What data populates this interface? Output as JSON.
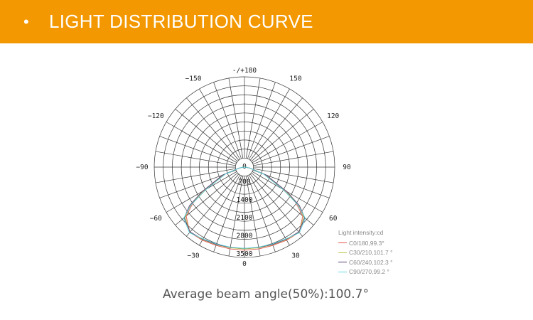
{
  "header": {
    "bullet": "•",
    "title": "LIGHT DISTRIBUTION CURVE"
  },
  "footer": {
    "beam_text": "Average beam angle(50%):100.7°"
  },
  "colors": {
    "banner": "#f39800",
    "grid": "#333333"
  },
  "chart_data": {
    "type": "polar",
    "radial_unit": "cd",
    "radial_max": 3500,
    "radial_ticks": [
      0,
      700,
      1400,
      2100,
      2800,
      3500
    ],
    "radial_tick_labels": [
      "0",
      "700",
      "1400",
      "2100",
      "2800",
      "3500"
    ],
    "angle_labels": [
      {
        "angle": 180,
        "label": "-/+180"
      },
      {
        "angle": 150,
        "label": "150"
      },
      {
        "angle": 120,
        "label": "120"
      },
      {
        "angle": 90,
        "label": "90"
      },
      {
        "angle": 60,
        "label": "60"
      },
      {
        "angle": 30,
        "label": "30"
      },
      {
        "angle": 0,
        "label": "0"
      },
      {
        "angle": -30,
        "label": "-30"
      },
      {
        "angle": -60,
        "label": "-60"
      },
      {
        "angle": -90,
        "label": "-90"
      },
      {
        "angle": -120,
        "label": "-120"
      },
      {
        "angle": -150,
        "label": "-150"
      }
    ],
    "legend_title": "Light intensity:cd",
    "series": [
      {
        "name": "C0/180,99.3°",
        "color": "#e05a4f",
        "angles": [
          0,
          10,
          20,
          30,
          40,
          50,
          55,
          60,
          70,
          80,
          90
        ],
        "values": [
          3220,
          3220,
          3230,
          3270,
          3300,
          2950,
          2450,
          1750,
          820,
          190,
          30
        ]
      },
      {
        "name": "C30/210,101.7 °",
        "color": "#b8c44a",
        "angles": [
          0,
          10,
          20,
          30,
          40,
          50,
          55,
          60,
          70,
          80,
          90
        ],
        "values": [
          3170,
          3180,
          3200,
          3240,
          3290,
          3000,
          2550,
          1850,
          880,
          200,
          30
        ]
      },
      {
        "name": "C60/240,102.3 °",
        "color": "#5a3f78",
        "angles": [
          0,
          10,
          20,
          30,
          40,
          50,
          55,
          60,
          70,
          80,
          90
        ],
        "values": [
          3150,
          3160,
          3190,
          3230,
          3280,
          3050,
          2600,
          1900,
          900,
          210,
          30
        ]
      },
      {
        "name": "C90/270,99.2 °",
        "color": "#5cd6e0",
        "angles": [
          0,
          10,
          20,
          30,
          40,
          50,
          55,
          60,
          70,
          80,
          90
        ],
        "values": [
          3150,
          3150,
          3170,
          3210,
          3320,
          3080,
          2500,
          1700,
          780,
          180,
          30
        ]
      }
    ]
  }
}
